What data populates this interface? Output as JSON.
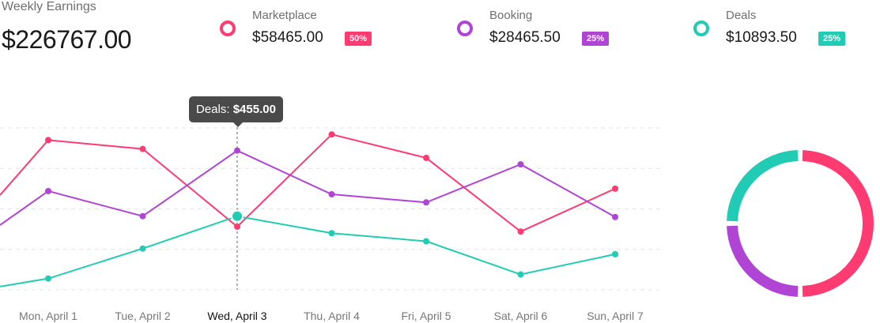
{
  "summary": {
    "title": "Weekly Earnings",
    "total": "$226767.00"
  },
  "stats": [
    {
      "name": "Marketplace",
      "value": "$58465.00",
      "badge": "50%",
      "color": "#ff3b72"
    },
    {
      "name": "Booking",
      "value": "$28465.50",
      "badge": "25%",
      "color": "#b044d4"
    },
    {
      "name": "Deals",
      "value": "$10893.50",
      "badge": "25%",
      "color": "#22ccb4"
    }
  ],
  "tooltip": {
    "label": "Deals:",
    "value": "$455.00"
  },
  "chart_data": [
    {
      "type": "line",
      "title": "",
      "xlabel": "",
      "ylabel": "",
      "categories": [
        "Mon, April 1",
        "Tue, April 2",
        "Wed, April 3",
        "Thu, April 4",
        "Fri, April 5",
        "Sat, April 6",
        "Sun, April 7"
      ],
      "highlighted_category": "Wed, April 3",
      "ylim": [
        0,
        1000
      ],
      "grid": true,
      "legend": "none",
      "series": [
        {
          "name": "Marketplace",
          "color": "#ff3b72",
          "lead_in": 585,
          "values": [
            925,
            870,
            390,
            960,
            815,
            360,
            625
          ]
        },
        {
          "name": "Booking",
          "color": "#b044d4",
          "lead_in": 400,
          "values": [
            610,
            455,
            860,
            590,
            540,
            775,
            450
          ]
        },
        {
          "name": "Deals",
          "color": "#22ccb4",
          "lead_in": 20,
          "values": [
            70,
            255,
            455,
            350,
            300,
            95,
            220
          ]
        }
      ]
    },
    {
      "type": "pie",
      "variant": "donut",
      "title": "",
      "slices": [
        {
          "name": "Marketplace",
          "value": 50,
          "color": "#ff3b72"
        },
        {
          "name": "Booking",
          "value": 25,
          "color": "#b044d4"
        },
        {
          "name": "Deals",
          "value": 25,
          "color": "#22ccb4"
        }
      ]
    }
  ]
}
